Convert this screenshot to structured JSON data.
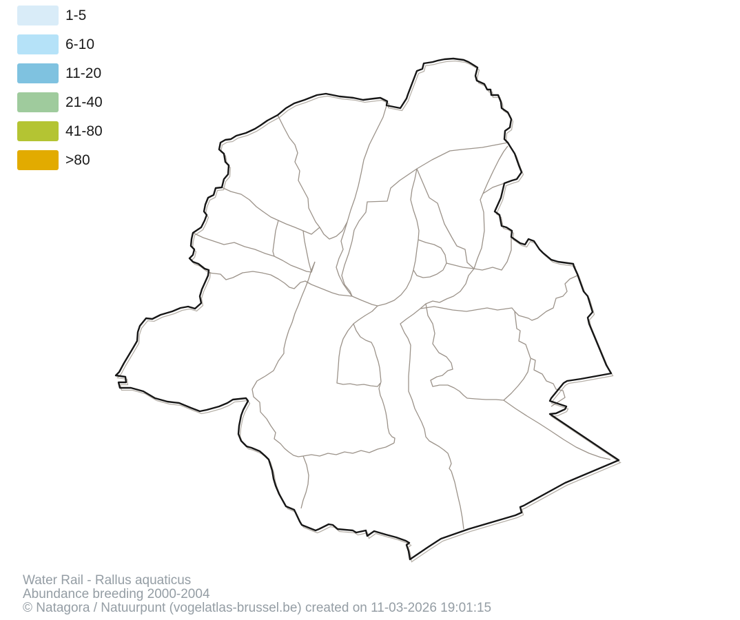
{
  "legend": {
    "items": [
      {
        "label": "1-5",
        "color": "#d9ecf8"
      },
      {
        "label": "6-10",
        "color": "#b5e2f8"
      },
      {
        "label": "11-20",
        "color": "#7fc2e0"
      },
      {
        "label": "21-40",
        "color": "#9fcb9d"
      },
      {
        "label": "41-80",
        "color": "#b4c433"
      },
      {
        "label": ">80",
        "color": "#e2ab00"
      }
    ]
  },
  "footer": {
    "line1": "Water Rail - Rallus aquaticus",
    "line2": "Abundance breeding 2000-2004",
    "line3": "© Natagora / Natuurpunt (vogelatlas-brussel.be) created on 11-03-2026 19:01:15"
  },
  "map": {
    "outline_color": "#161616",
    "boundary_color": "#9b9289",
    "shadow_color": "#b6b0a8",
    "fill_color": "#ffffff"
  }
}
